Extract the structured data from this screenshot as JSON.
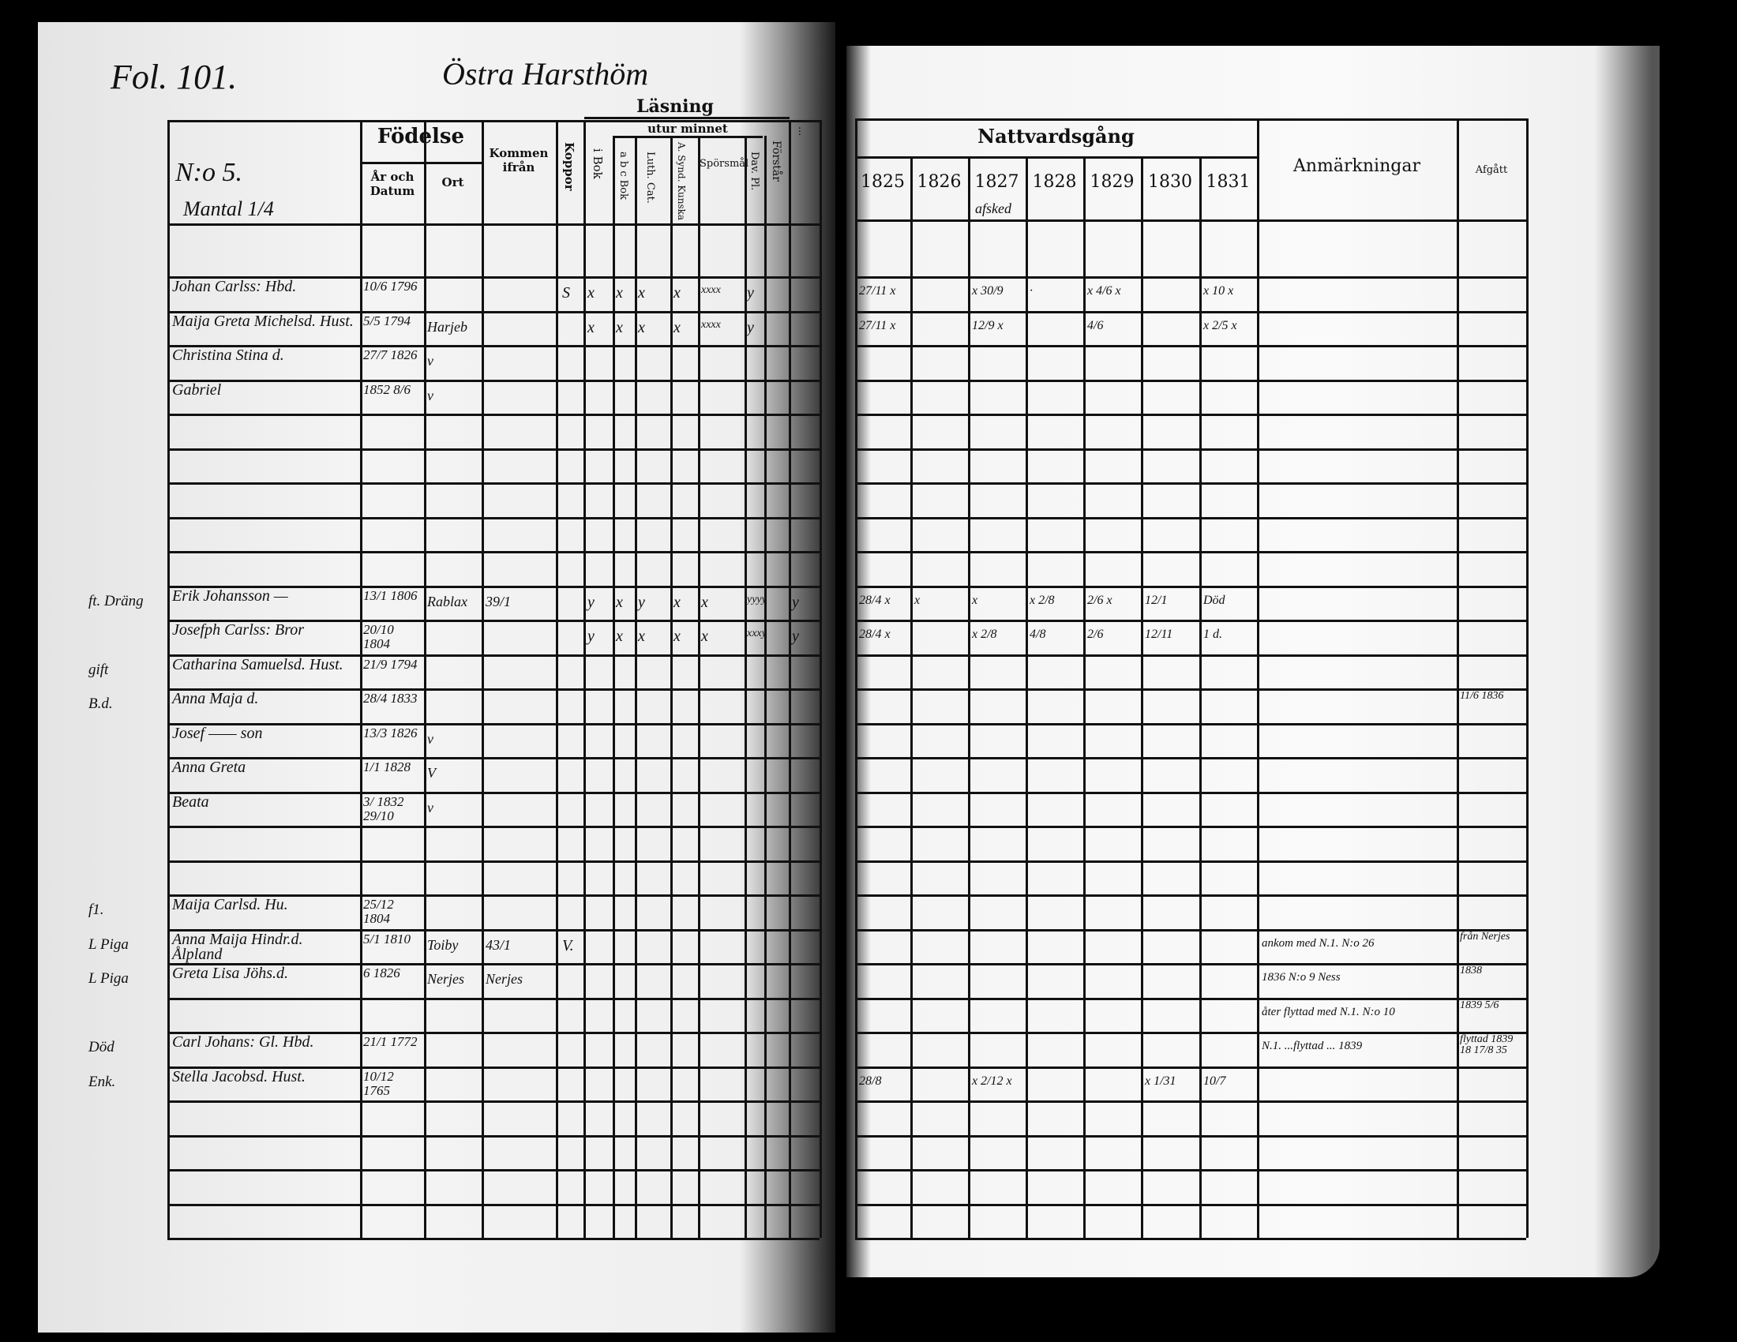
{
  "left_page": {
    "folio": "Fol. 101.",
    "place_heading": "Östra Harsthöm",
    "household_no": "N:o 5.",
    "mantal": "Mantal 1/4",
    "headers": {
      "fodelse": "Födelse",
      "ar_och_datum": "År och Datum",
      "ort": "Ort",
      "kommen_ifran": "Kommen ifrån",
      "koppor": "Koppor",
      "lasning": "Läsning",
      "utur_minnet": "utur minnet",
      "i_bok": "i Bok",
      "abc_bok": "a b c Bok",
      "luth_cat": "Luth. Cat.",
      "a_synd": "A. Synd. Kunska",
      "sporsmal": "Spörsmål",
      "dav_pl": "Dav. Pl.",
      "forstar": "Förstår",
      "last": "..."
    },
    "rows": [
      {
        "name": "Johan Carlss: Hbd.",
        "birth": "10/6 1796",
        "ort": "",
        "from": "",
        "margin": "",
        "koppor": "S",
        "marks": [
          "x",
          "x",
          "x",
          "x",
          "xxxx",
          "y"
        ]
      },
      {
        "name": "Maija Greta Michelsd. Hust.",
        "birth": "5/5 1794",
        "ort": "Harjeb",
        "from": "",
        "margin": "",
        "koppor": "",
        "marks": [
          "x",
          "x",
          "x",
          "x",
          "xxxx",
          "y"
        ]
      },
      {
        "name": "Christina Stina  d.",
        "birth": "27/7 1826",
        "ort": "v",
        "from": "",
        "margin": "",
        "koppor": "",
        "marks": []
      },
      {
        "name": "Gabriel",
        "birth": "1852 8/6",
        "ort": "v",
        "from": "",
        "margin": "",
        "koppor": "",
        "marks": []
      },
      {},
      {},
      {},
      {},
      {},
      {
        "name": "Erik Johansson —",
        "birth": "13/1 1806",
        "ort": "Rablax",
        "from": "39/1",
        "margin": "ft. Dräng",
        "koppor": "",
        "marks": [
          "y",
          "x",
          "y",
          "x",
          "x",
          "yyyy",
          "y"
        ]
      },
      {
        "name": "Josefph Carlss: Bror",
        "birth": "20/10 1804",
        "ort": "",
        "from": "",
        "margin": "",
        "koppor": "",
        "marks": [
          "y",
          "x",
          "x",
          "x",
          "x",
          "xxxy",
          "y"
        ]
      },
      {
        "name": "Catharina Samuelsd. Hust.",
        "birth": "21/9 1794",
        "ort": "",
        "from": "",
        "margin": "gift",
        "koppor": "",
        "marks": []
      },
      {
        "name": "Anna Maja d.",
        "birth": "28/4 1833",
        "ort": "",
        "from": "",
        "margin": "B.d.",
        "koppor": "",
        "marks": []
      },
      {
        "name": "Josef —— son",
        "birth": "13/3 1826",
        "ort": "v",
        "from": "",
        "margin": "",
        "koppor": "",
        "marks": []
      },
      {
        "name": "Anna Greta",
        "birth": "1/1 1828",
        "ort": "V",
        "from": "",
        "margin": "",
        "koppor": "",
        "marks": []
      },
      {
        "name": "Beata",
        "birth": "3/ 1832 29/10",
        "ort": "v",
        "from": "",
        "margin": "",
        "koppor": "",
        "marks": []
      },
      {},
      {},
      {
        "name": "Maija Carlsd. Hu.",
        "birth": "25/12 1804",
        "ort": "",
        "from": "",
        "margin": "f1.",
        "koppor": "",
        "marks": []
      },
      {
        "name": "Anna Maija Hindr.d. Ålpland",
        "birth": "5/1 1810",
        "ort": "Toiby",
        "from": "43/1",
        "margin": "L Piga",
        "koppor": "V.",
        "marks": []
      },
      {
        "name": "Greta Lisa Jöhs.d.",
        "birth": "6 1826",
        "ort": "Nerjes",
        "from": "Nerjes",
        "margin": "L Piga",
        "koppor": "",
        "marks": []
      },
      {},
      {
        "name": "Carl Johans: Gl. Hbd.",
        "birth": "21/1 1772",
        "ort": "",
        "from": "",
        "margin": "Död",
        "koppor": "",
        "marks": []
      },
      {
        "name": "Stella Jacobsd. Hust.",
        "birth": "10/12 1765",
        "ort": "",
        "from": "",
        "margin": "Enk.",
        "koppor": "",
        "marks": []
      },
      {},
      {},
      {},
      {}
    ]
  },
  "right_page": {
    "headers": {
      "nattvardsgang": "Nattvardsgång",
      "years": [
        "1825",
        "1826",
        "1827",
        "1828",
        "1829",
        "1830",
        "1831"
      ],
      "year_note": "afsked",
      "anmarkningar": "Anmärkningar",
      "afgatt": "Afgått"
    },
    "rows": [
      {
        "comm": [
          "27/11 x",
          "",
          "x 30/9",
          "·",
          "x 4/6 x",
          "",
          "x 10 x"
        ],
        "note": "",
        "afgatt": ""
      },
      {
        "comm": [
          "27/11 x",
          "",
          "12/9 x",
          "",
          "4/6",
          "",
          "x 2/5 x"
        ],
        "note": "",
        "afgatt": ""
      },
      {},
      {},
      {},
      {},
      {},
      {},
      {},
      {
        "comm": [
          "28/4 x",
          "x",
          "x",
          "x 2/8",
          "2/6 x",
          "12/1",
          "Död"
        ],
        "note": "",
        "afgatt": ""
      },
      {
        "comm": [
          "28/4 x",
          "",
          "x 2/8",
          "4/8",
          "2/6",
          "12/11",
          "1 d."
        ],
        "note": "",
        "afgatt": ""
      },
      {},
      {
        "comm": [],
        "note": "",
        "afgatt": "11/6 1836"
      },
      {},
      {},
      {},
      {},
      {},
      {},
      {
        "comm": [],
        "note": "ankom med N.1. N:o 26",
        "afgatt": "från Nerjes"
      },
      {
        "comm": [],
        "note": "1836 N:o 9 Ness",
        "afgatt": "1838"
      },
      {
        "comm": [],
        "note": "åter flyttad med N.1. N:o 10",
        "afgatt": "1839 5/6"
      },
      {
        "comm": [
          "",
          "",
          "",
          "",
          "",
          "",
          ""
        ],
        "note": "N.1. ...flyttad ... 1839",
        "afgatt": "flyttad 1839 18 17/8 35"
      },
      {
        "comm": [
          "28/8",
          "",
          "x 2/12 x",
          "",
          "",
          "x 1/31",
          "10/7"
        ],
        "note": "",
        "afgatt": ""
      },
      {},
      {},
      {},
      {},
      {}
    ]
  }
}
